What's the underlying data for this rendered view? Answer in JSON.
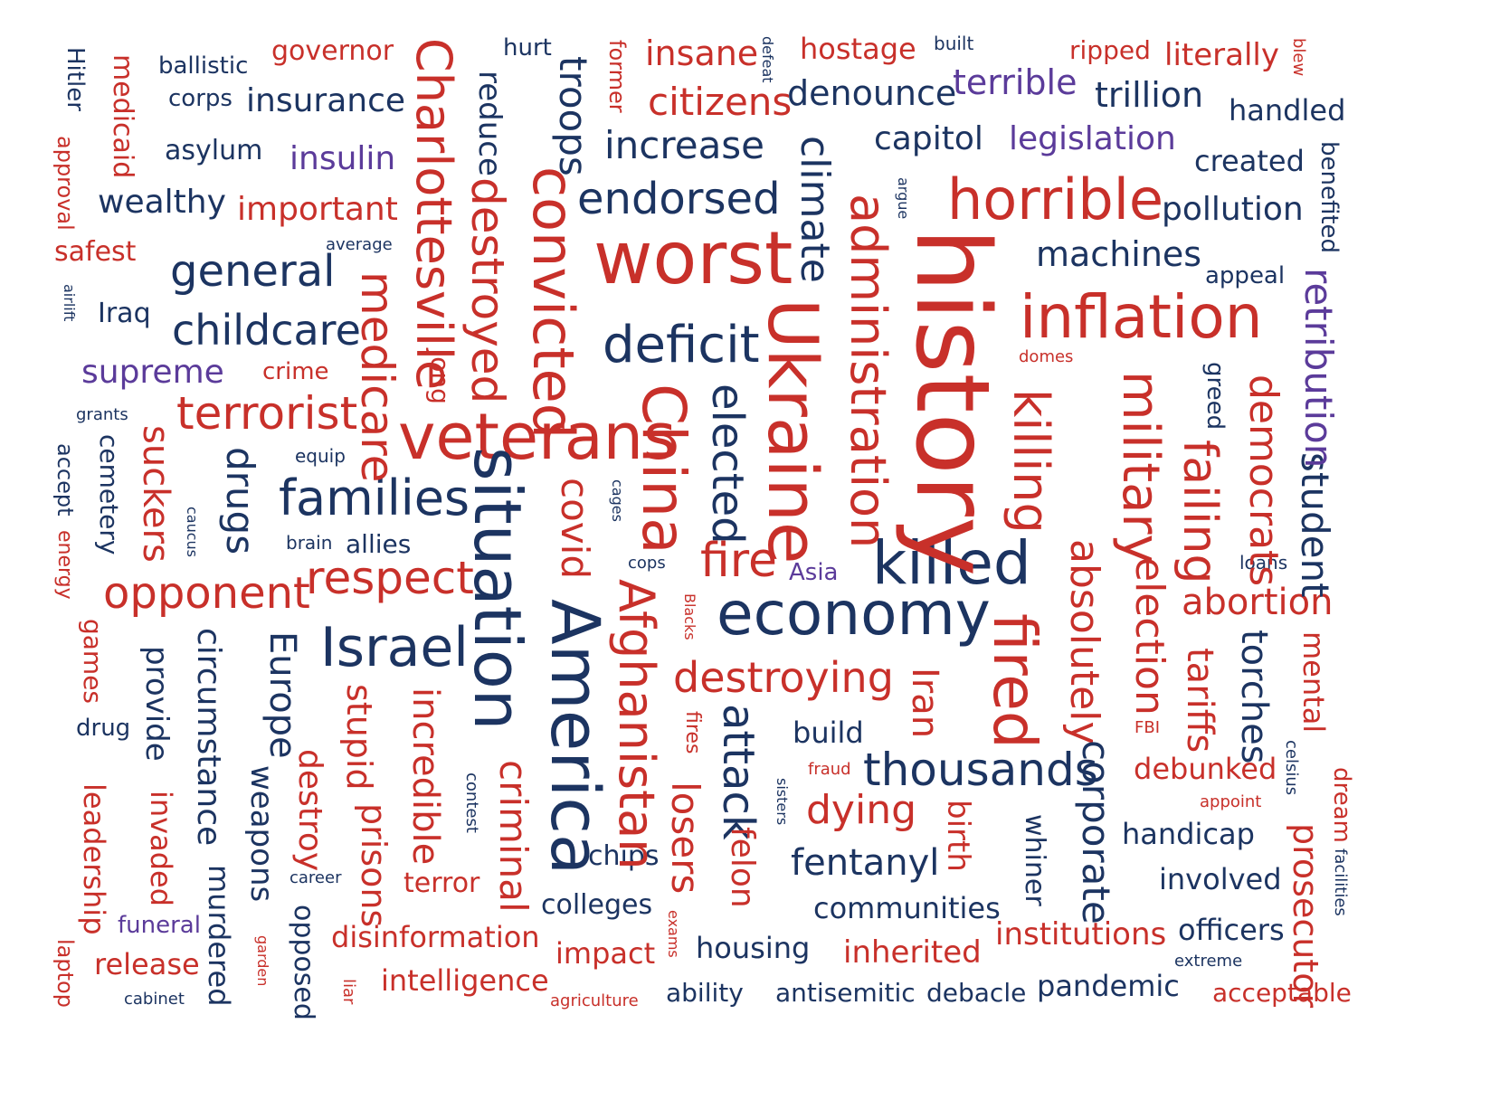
{
  "colors": {
    "red": "#c8302a",
    "navy": "#1c3461",
    "purple": "#5b3b9a"
  },
  "words": {
    "governor": "governor",
    "ballistic": "ballistic",
    "corps": "corps",
    "insurance": "insurance",
    "hurt": "hurt",
    "insane": "insane",
    "hostage": "hostage",
    "built": "built",
    "ripped": "ripped",
    "literally": "literally",
    "terrible": "terrible",
    "denounce": "denounce",
    "trillion": "trillion",
    "citizens": "citizens",
    "handled": "handled",
    "asylum": "asylum",
    "insulin": "insulin",
    "increase": "increase",
    "capitol": "capitol",
    "legislation": "legislation",
    "created": "created",
    "wealthy": "wealthy",
    "important": "important",
    "endorsed": "endorsed",
    "horrible": "horrible",
    "pollution": "pollution",
    "safest": "safest",
    "average": "average",
    "general": "general",
    "worst": "worst",
    "machines": "machines",
    "appeal": "appeal",
    "Iraq": "Iraq",
    "childcare": "childcare",
    "deficit": "deficit",
    "inflation": "inflation",
    "supreme": "supreme",
    "crime": "crime",
    "domes": "domes",
    "grants": "grants",
    "terrorist": "terrorist",
    "veterans": "veterans",
    "equip": "equip",
    "families": "families",
    "brain": "brain",
    "allies": "allies",
    "respect": "respect",
    "opponent": "opponent",
    "cops": "cops",
    "fire": "fire",
    "Asia": "Asia",
    "killed": "killed",
    "loans": "loans",
    "abortion": "abortion",
    "economy": "economy",
    "Israel": "Israel",
    "destroying": "destroying",
    "drug": "drug",
    "build": "build",
    "FBI": "FBI",
    "fraud": "fraud",
    "thousands": "thousands",
    "debunked": "debunked",
    "appoint": "appoint",
    "dying": "dying",
    "handicap": "handicap",
    "chips": "chips",
    "fentanyl": "fentanyl",
    "terror": "terror",
    "career": "career",
    "involved": "involved",
    "colleges": "colleges",
    "communities": "communities",
    "funeral": "funeral",
    "disinformation": "disinformation",
    "institutions": "institutions",
    "officers": "officers",
    "release": "release",
    "impact": "impact",
    "housing": "housing",
    "inherited": "inherited",
    "extreme": "extreme",
    "intelligence": "intelligence",
    "pandemic": "pandemic",
    "cabinet": "cabinet",
    "ability": "ability",
    "antisemitic": "antisemitic",
    "debacle": "debacle",
    "acceptable": "acceptable",
    "agriculture": "agriculture",
    "Hitler": "Hitler",
    "medicaid": "medicaid",
    "approval": "approval",
    "airlift": "airlift",
    "accept": "accept",
    "energy": "energy",
    "cemetery": "cemetery",
    "caucus": "caucus",
    "suckers": "suckers",
    "drugs": "drugs",
    "games": "games",
    "leadership": "leadership",
    "laptop": "laptop",
    "provide": "provide",
    "invaded": "invaded",
    "circumstance": "circumstance",
    "murdered": "murdered",
    "garden": "garden",
    "Europe": "Europe",
    "weapons": "weapons",
    "opposed": "opposed",
    "destroy": "destroy",
    "liar": "liar",
    "stupid": "stupid",
    "prisons": "prisons",
    "medicare": "medicare",
    "Charlottesville": "Charlottesville",
    "Jong": "Jong",
    "incredible": "incredible",
    "contest": "contest",
    "reduce": "reduce",
    "destroyed": "destroyed",
    "situation": "situation",
    "criminal": "criminal",
    "troops": "troops",
    "convicted": "convicted",
    "covid": "covid",
    "cages": "cages",
    "former": "former",
    "America": "America",
    "Afghanistan": "Afghanistan",
    "China": "China",
    "Blacks": "Blacks",
    "exams": "exams",
    "defeat": "defeat",
    "fires": "fires",
    "elected": "elected",
    "attack": "attack",
    "losers": "losers",
    "felon": "felon",
    "climate": "climate",
    "Ukraine": "Ukraine",
    "sisters": "sisters",
    "argue": "argue",
    "administration": "administration",
    "history": "history",
    "Iran": "Iran",
    "birth": "birth",
    "killing": "killing",
    "fired": "fired",
    "whiner": "whiner",
    "absolutely": "absolutely",
    "corporate": "corporate",
    "military": "military",
    "election": "election",
    "greed": "greed",
    "failing": "failing",
    "tariffs": "tariffs",
    "democrats": "democrats",
    "torches": "torches",
    "celsius": "celsius",
    "student": "student",
    "prosecutor": "prosecutor",
    "retribution": "retribution",
    "blew": "blew",
    "benefited": "benefited",
    "mental": "mental",
    "dream": "dream",
    "facilities": "facilities"
  }
}
